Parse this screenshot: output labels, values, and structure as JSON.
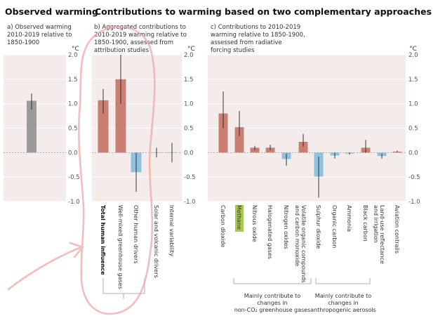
{
  "titles": {
    "observed": "Observed warming",
    "contributions": "Contributions to warming based on two complementary approaches"
  },
  "panels": {
    "a": [
      "a) Observed warming",
      "2010-2019 relative to",
      "1850-1900"
    ],
    "b": [
      "b) Aggregated contributions to",
      "2010-2019 warming relative to",
      "1850-1900, assessed from",
      "attribution studies"
    ],
    "c": [
      "c) Contributions to 2010-2019",
      "warming relative to 1850-1900,",
      "assessed from radiative",
      "forcing studies"
    ]
  },
  "unit_label": "°C",
  "group_labels": {
    "ghg": [
      "Mainly contribute to",
      "changes in",
      "non-CO₂ greenhouse gases"
    ],
    "aerosol": [
      "Mainly contribute to",
      "changes in",
      "anthropogenic aerosols"
    ]
  },
  "colors": {
    "panel_bg": "#f3ecea",
    "observed": "#9b9b9b",
    "warming": "#c97f72",
    "cooling": "#8fc3dd",
    "highlight": "#a6c94a",
    "annotation": "#f2a6a6"
  },
  "chart_data": [
    {
      "type": "bar",
      "panel": "a",
      "ylim": [
        -1.0,
        2.0
      ],
      "yticks": [
        -1.0,
        -0.5,
        0.0,
        0.5,
        1.0,
        1.5,
        2.0
      ],
      "ytick_labels": [
        "-1.0",
        "-0.5",
        "0.0",
        "0.5",
        "1.0",
        "1.5",
        "2.0"
      ],
      "categories": [
        ""
      ],
      "values": [
        1.06
      ],
      "err_low": [
        0.88
      ],
      "err_high": [
        1.21
      ]
    },
    {
      "type": "bar",
      "panel": "b",
      "ylim": [
        -1.0,
        2.0
      ],
      "yticks": [
        -1.0,
        -0.5,
        0.0,
        0.5,
        1.0,
        1.5,
        2.0
      ],
      "ytick_labels": [
        "-1.0",
        "-0.5",
        "0.0",
        "0.5",
        "1.0",
        "1.5",
        "2.0"
      ],
      "categories": [
        "Total human influence",
        "Well-mixed greenhouse gases",
        "Other human drivers",
        "Solar and volcanic drivers",
        "Internal variability"
      ],
      "values": [
        1.07,
        1.5,
        -0.4,
        0.0,
        0.0
      ],
      "err_low": [
        0.8,
        1.0,
        -0.8,
        -0.1,
        -0.2
      ],
      "err_high": [
        1.3,
        2.0,
        0.0,
        0.1,
        0.2
      ]
    },
    {
      "type": "bar",
      "panel": "c",
      "ylim": [
        -1.0,
        2.0
      ],
      "yticks": [
        -1.0,
        -0.5,
        0.0,
        0.5,
        1.0,
        1.5,
        2.0
      ],
      "ytick_labels": [
        "-1.0",
        "-0.5",
        "0.0",
        "0.5",
        "1.0",
        "1.5",
        "2.0"
      ],
      "categories": [
        "Carbon dioxide",
        "Methane",
        "Nitrous oxide",
        "Halogenated gases",
        "Nitrogen oxides",
        "Volatile organic compounds and carbon monoxide",
        "Sulphur dioxide",
        "Organic carbon",
        "Ammonia",
        "Black carbon",
        "Land-use reflectance and irrigation",
        "Aviation contrails"
      ],
      "values": [
        0.8,
        0.52,
        0.1,
        0.1,
        -0.13,
        0.22,
        -0.49,
        -0.06,
        -0.02,
        0.1,
        -0.07,
        0.02
      ],
      "err_low": [
        0.5,
        0.34,
        0.05,
        0.05,
        -0.27,
        0.12,
        -0.92,
        -0.12,
        -0.04,
        0.0,
        -0.12,
        0.01
      ],
      "err_high": [
        1.25,
        0.85,
        0.14,
        0.16,
        -0.02,
        0.38,
        -0.08,
        0.0,
        0.0,
        0.26,
        -0.02,
        0.04
      ]
    }
  ]
}
